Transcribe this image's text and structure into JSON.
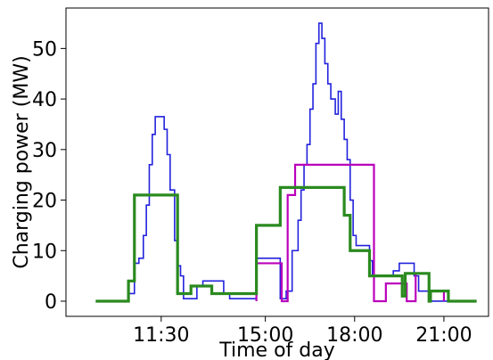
{
  "chart_data": {
    "type": "line",
    "title": "",
    "xlabel": "Time of day",
    "ylabel": "Charging power (MW)",
    "xlim": [
      8.3,
      22.5
    ],
    "ylim": [
      -3,
      58
    ],
    "x_ticks": [
      {
        "value": 11.5,
        "label": "11:30"
      },
      {
        "value": 15.0,
        "label": "15:00"
      },
      {
        "value": 18.0,
        "label": "18:00"
      },
      {
        "value": 21.0,
        "label": "21:00"
      }
    ],
    "y_ticks": [
      {
        "value": 0,
        "label": "0"
      },
      {
        "value": 10,
        "label": "10"
      },
      {
        "value": 20,
        "label": "20"
      },
      {
        "value": 30,
        "label": "30"
      },
      {
        "value": 40,
        "label": "40"
      },
      {
        "value": 50,
        "label": "50"
      }
    ],
    "grid": false,
    "series": [
      {
        "color": "#2222dd",
        "stroke_width": 1.6,
        "step": true,
        "points": [
          [
            9.3,
            0
          ],
          [
            10.4,
            0
          ],
          [
            10.4,
            1.5
          ],
          [
            10.6,
            1.5
          ],
          [
            10.6,
            7.5
          ],
          [
            10.75,
            7.5
          ],
          [
            10.75,
            8.5
          ],
          [
            10.9,
            8.5
          ],
          [
            10.9,
            13
          ],
          [
            11.0,
            13
          ],
          [
            11.0,
            19
          ],
          [
            11.1,
            19
          ],
          [
            11.1,
            27
          ],
          [
            11.2,
            27
          ],
          [
            11.2,
            33
          ],
          [
            11.3,
            33
          ],
          [
            11.3,
            36.5
          ],
          [
            11.6,
            36.5
          ],
          [
            11.6,
            34
          ],
          [
            11.7,
            34
          ],
          [
            11.7,
            29
          ],
          [
            11.8,
            29
          ],
          [
            11.8,
            22
          ],
          [
            11.95,
            22
          ],
          [
            11.95,
            12
          ],
          [
            12.05,
            12
          ],
          [
            12.05,
            7
          ],
          [
            12.15,
            7
          ],
          [
            12.15,
            5
          ],
          [
            12.25,
            5
          ],
          [
            12.25,
            0.5
          ],
          [
            12.7,
            0.5
          ],
          [
            12.7,
            3
          ],
          [
            12.9,
            3
          ],
          [
            12.9,
            4
          ],
          [
            13.6,
            4
          ],
          [
            13.6,
            1.5
          ],
          [
            13.8,
            1.5
          ],
          [
            13.8,
            0.5
          ],
          [
            14.7,
            0.5
          ],
          [
            14.7,
            8.5
          ],
          [
            15.5,
            8.5
          ],
          [
            15.5,
            0.5
          ],
          [
            15.7,
            0.5
          ],
          [
            15.7,
            2
          ],
          [
            15.9,
            2
          ],
          [
            15.9,
            10
          ],
          [
            16.1,
            10
          ],
          [
            16.1,
            16
          ],
          [
            16.2,
            16
          ],
          [
            16.2,
            22
          ],
          [
            16.3,
            22
          ],
          [
            16.3,
            27
          ],
          [
            16.4,
            27
          ],
          [
            16.4,
            31
          ],
          [
            16.5,
            31
          ],
          [
            16.5,
            38
          ],
          [
            16.6,
            38
          ],
          [
            16.6,
            43
          ],
          [
            16.7,
            43
          ],
          [
            16.7,
            51
          ],
          [
            16.8,
            51
          ],
          [
            16.8,
            55
          ],
          [
            16.9,
            55
          ],
          [
            16.9,
            52
          ],
          [
            17.0,
            52
          ],
          [
            17.0,
            47
          ],
          [
            17.1,
            47
          ],
          [
            17.1,
            43
          ],
          [
            17.2,
            43
          ],
          [
            17.2,
            40
          ],
          [
            17.35,
            40
          ],
          [
            17.35,
            37
          ],
          [
            17.45,
            37
          ],
          [
            17.45,
            41.5
          ],
          [
            17.55,
            41.5
          ],
          [
            17.55,
            36
          ],
          [
            17.65,
            36
          ],
          [
            17.65,
            32
          ],
          [
            17.75,
            32
          ],
          [
            17.75,
            28
          ],
          [
            17.85,
            28
          ],
          [
            17.85,
            20
          ],
          [
            17.95,
            20
          ],
          [
            17.95,
            13
          ],
          [
            18.05,
            13
          ],
          [
            18.05,
            11
          ],
          [
            18.5,
            11
          ],
          [
            18.5,
            8
          ],
          [
            18.6,
            8
          ],
          [
            18.6,
            5
          ],
          [
            19.3,
            5
          ],
          [
            19.3,
            6
          ],
          [
            19.5,
            6
          ],
          [
            19.5,
            7.5
          ],
          [
            20.0,
            7.5
          ],
          [
            20.0,
            5
          ],
          [
            20.15,
            5
          ],
          [
            20.15,
            2
          ],
          [
            20.5,
            2
          ],
          [
            20.5,
            0
          ],
          [
            21.4,
            0
          ]
        ]
      },
      {
        "color": "#bb00bb",
        "stroke_width": 2.2,
        "step": true,
        "points": [
          [
            14.7,
            0
          ],
          [
            14.7,
            7.5
          ],
          [
            15.55,
            7.5
          ],
          [
            15.55,
            0
          ],
          [
            15.75,
            0
          ],
          [
            15.75,
            21
          ],
          [
            16.0,
            21
          ],
          [
            16.0,
            27
          ],
          [
            18.65,
            27
          ],
          [
            18.65,
            0
          ],
          [
            19.05,
            0
          ],
          [
            19.05,
            3.5
          ],
          [
            19.75,
            3.5
          ],
          [
            19.75,
            0
          ],
          [
            20.05,
            0
          ],
          [
            20.05,
            5.5
          ],
          [
            20.5,
            5.5
          ],
          [
            20.5,
            2
          ],
          [
            21.0,
            2
          ],
          [
            21.0,
            0
          ]
        ]
      },
      {
        "color": "#2a8a1f",
        "stroke_width": 3.2,
        "step": true,
        "points": [
          [
            9.3,
            0
          ],
          [
            10.4,
            0
          ],
          [
            10.4,
            4
          ],
          [
            10.6,
            4
          ],
          [
            10.6,
            21
          ],
          [
            12.05,
            21
          ],
          [
            12.05,
            1.5
          ],
          [
            12.5,
            1.5
          ],
          [
            12.5,
            3
          ],
          [
            13.2,
            3
          ],
          [
            13.2,
            1.5
          ],
          [
            13.8,
            1.5
          ],
          [
            13.8,
            1.5
          ],
          [
            14.7,
            1.5
          ],
          [
            14.7,
            15
          ],
          [
            15.5,
            15
          ],
          [
            15.5,
            22.5
          ],
          [
            17.65,
            22.5
          ],
          [
            17.65,
            17
          ],
          [
            17.85,
            17
          ],
          [
            17.85,
            10
          ],
          [
            18.5,
            10
          ],
          [
            18.5,
            5
          ],
          [
            19.6,
            5
          ],
          [
            19.6,
            1
          ],
          [
            19.7,
            1
          ],
          [
            19.7,
            5.5
          ],
          [
            20.5,
            5.5
          ],
          [
            20.5,
            0
          ],
          [
            20.55,
            0
          ],
          [
            20.55,
            2
          ],
          [
            21.15,
            2
          ],
          [
            21.15,
            0
          ],
          [
            22.1,
            0
          ]
        ]
      }
    ]
  }
}
